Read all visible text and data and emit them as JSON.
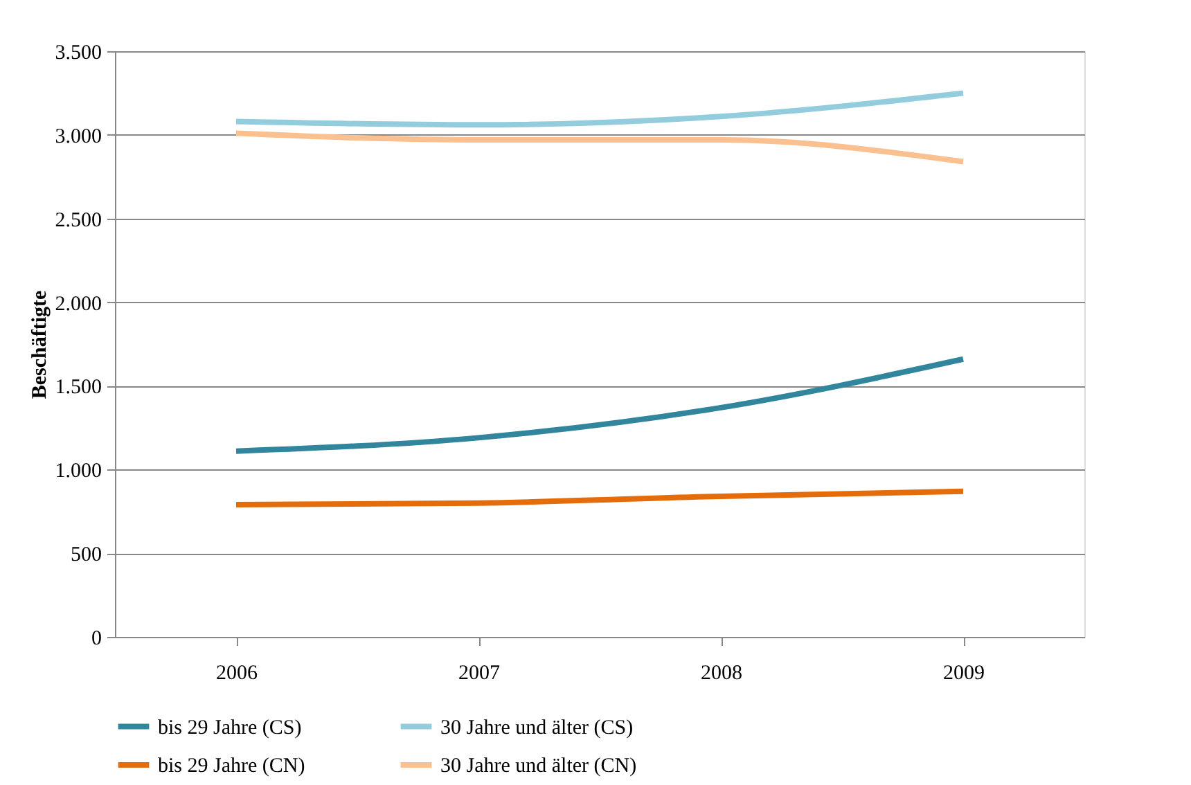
{
  "chart_data": {
    "type": "line",
    "ylabel": "Beschäftigte",
    "categories": [
      "2006",
      "2007",
      "2008",
      "2009"
    ],
    "series": [
      {
        "name": "bis 29 Jahre (CS)",
        "color": "#31859c",
        "values": [
          1110,
          1190,
          1370,
          1660
        ]
      },
      {
        "name": "30 Jahre und älter (CS)",
        "color": "#93cddd",
        "values": [
          3080,
          3060,
          3110,
          3250
        ]
      },
      {
        "name": "bis 29 Jahre (CN)",
        "color": "#e46c0a",
        "values": [
          790,
          800,
          840,
          870
        ]
      },
      {
        "name": "30 Jahre und älter (CN)",
        "color": "#fac090",
        "values": [
          3010,
          2970,
          2970,
          2840
        ]
      }
    ],
    "ylim": [
      0,
      3500
    ],
    "yticks": [
      {
        "value": 0,
        "label": "0"
      },
      {
        "value": 500,
        "label": "500"
      },
      {
        "value": 1000,
        "label": "1.000"
      },
      {
        "value": 1500,
        "label": "1.500"
      },
      {
        "value": 2000,
        "label": "2.000"
      },
      {
        "value": 2500,
        "label": "2.500"
      },
      {
        "value": 3000,
        "label": "3.000"
      },
      {
        "value": 3500,
        "label": "3.500"
      }
    ],
    "grid": "y",
    "legend": "bottom",
    "marker": "none",
    "line_style": "solid"
  }
}
